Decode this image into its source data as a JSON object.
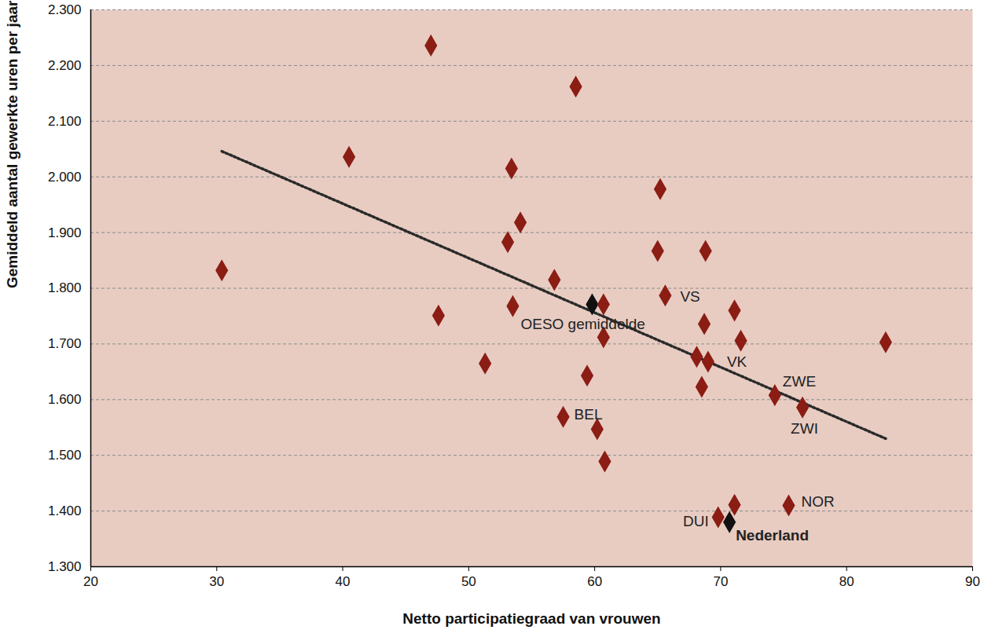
{
  "chart_data": {
    "type": "scatter",
    "xlabel": "Netto participatiegraad van vrouwen",
    "ylabel": "Gemiddeld aantal gewerkte uren per jaar",
    "x": [
      47.0,
      58.5,
      40.5,
      53.4,
      65.2,
      54.1,
      53.1,
      65.0,
      68.8,
      30.4,
      56.8,
      65.6,
      59.8,
      60.7,
      53.5,
      71.1,
      47.6,
      68.7,
      71.6,
      83.1,
      60.7,
      68.1,
      69.0,
      51.3,
      59.4,
      68.5,
      74.3,
      76.5,
      57.5,
      60.2,
      60.8,
      71.1,
      75.4,
      69.8,
      70.7
    ],
    "y": [
      2236,
      2162,
      2036,
      2015,
      1978,
      1918,
      1883,
      1867,
      1867,
      1832,
      1815,
      1787,
      1771,
      1771,
      1768,
      1760,
      1751,
      1736,
      1706,
      1703,
      1712,
      1677,
      1668,
      1665,
      1643,
      1623,
      1608,
      1586,
      1569,
      1547,
      1489,
      1411,
      1410,
      1389,
      1380
    ],
    "labels": [
      null,
      null,
      null,
      null,
      null,
      null,
      null,
      null,
      null,
      null,
      null,
      "VS",
      "OESO gemiddelde",
      null,
      null,
      null,
      null,
      null,
      null,
      null,
      null,
      null,
      "VK",
      null,
      null,
      null,
      "ZWE",
      "ZWI",
      "BEL",
      null,
      null,
      null,
      "NOR",
      "DUI",
      "Nederland"
    ],
    "colors": [
      "#8b1d14",
      "#8b1d14",
      "#8b1d14",
      "#8b1d14",
      "#8b1d14",
      "#8b1d14",
      "#8b1d14",
      "#8b1d14",
      "#8b1d14",
      "#8b1d14",
      "#8b1d14",
      "#8b1d14",
      "#111111",
      "#8b1d14",
      "#8b1d14",
      "#8b1d14",
      "#8b1d14",
      "#8b1d14",
      "#8b1d14",
      "#8b1d14",
      "#8b1d14",
      "#8b1d14",
      "#8b1d14",
      "#8b1d14",
      "#8b1d14",
      "#8b1d14",
      "#8b1d14",
      "#8b1d14",
      "#8b1d14",
      "#8b1d14",
      "#8b1d14",
      "#8b1d14",
      "#8b1d14",
      "#8b1d14",
      "#111111"
    ],
    "marker": "diamond",
    "trendline": {
      "x": [
        30.4,
        83.1
      ],
      "y": [
        2046,
        1530
      ],
      "line_style": "dotted"
    },
    "xlim": [
      20,
      90
    ],
    "xticks": [
      20,
      30,
      40,
      50,
      60,
      70,
      80,
      90
    ],
    "ylim": [
      1300,
      2300
    ],
    "yticks": [
      {
        "value": 1300,
        "label": "1.300"
      },
      {
        "value": 1400,
        "label": "1.400"
      },
      {
        "value": 1500,
        "label": "1.500"
      },
      {
        "value": 1600,
        "label": "1.600"
      },
      {
        "value": 1700,
        "label": "1.700"
      },
      {
        "value": 1800,
        "label": "1.800"
      },
      {
        "value": 1900,
        "label": "1.900"
      },
      {
        "value": 2000,
        "label": "2.000"
      },
      {
        "value": 2100,
        "label": "2.100"
      },
      {
        "value": 2200,
        "label": "2.200"
      },
      {
        "value": 2300,
        "label": "2.300"
      }
    ],
    "grid": true
  }
}
